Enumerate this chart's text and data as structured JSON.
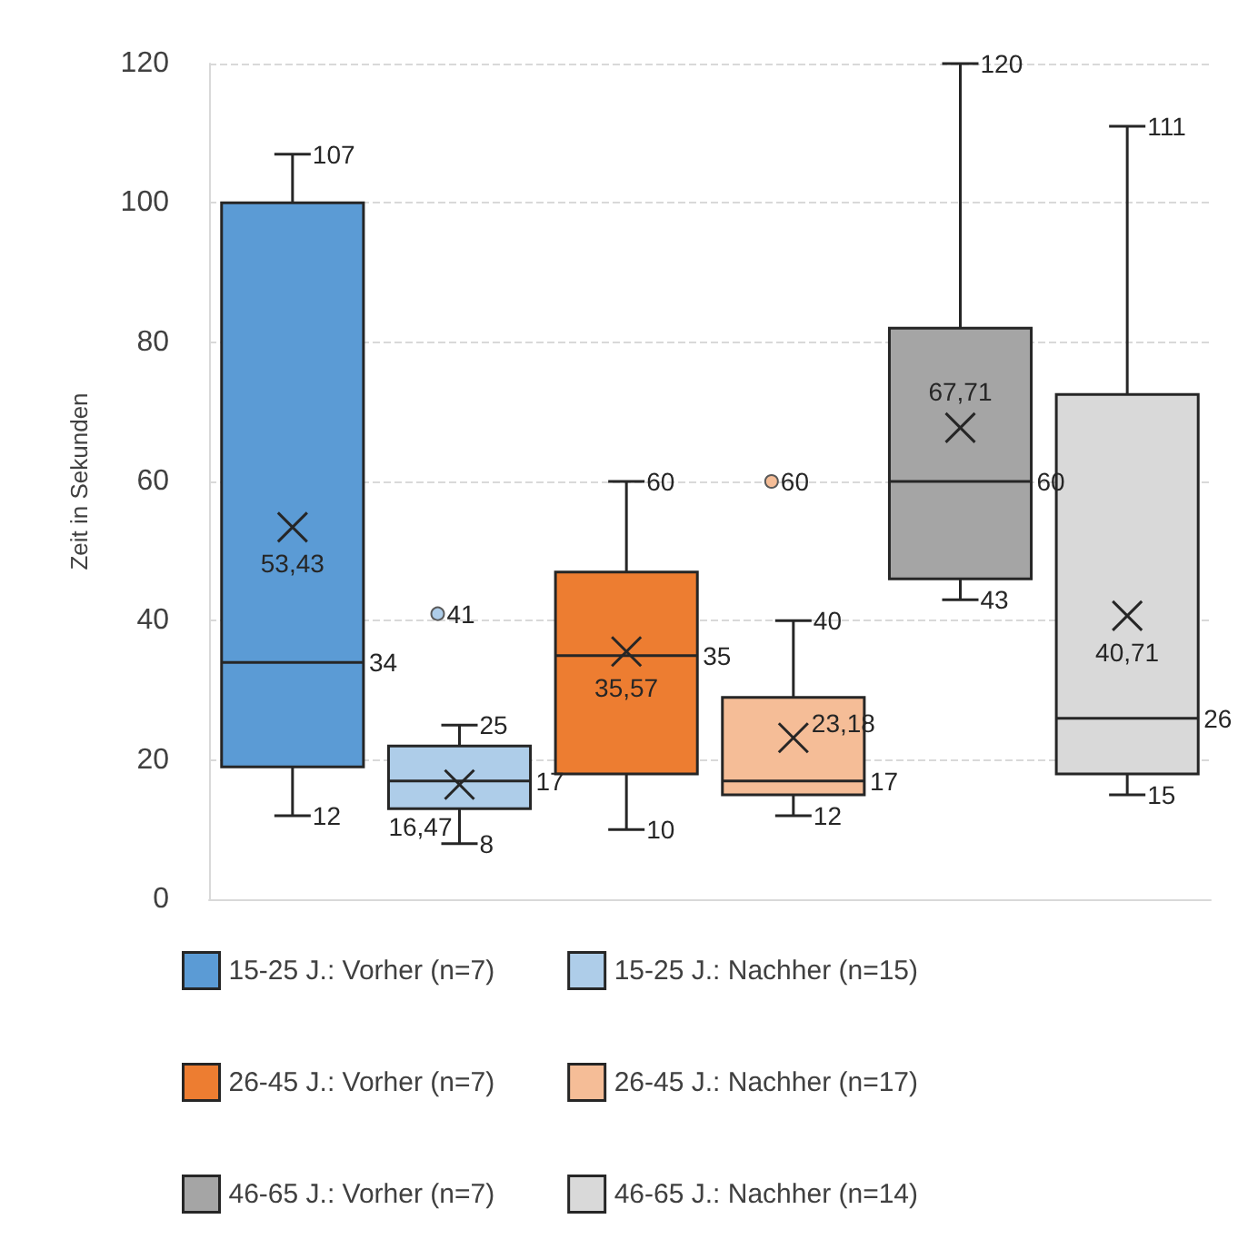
{
  "chart_data": {
    "type": "box",
    "ylabel": "Zeit in Sekunden",
    "categories": [
      null
    ],
    "ylim": [
      0,
      120
    ],
    "yticks": [
      0,
      20,
      40,
      60,
      80,
      100,
      120
    ],
    "grid": "y",
    "legend": "bottom",
    "series": [
      {
        "name": "15-25 J.: Vorher (n=7)",
        "color": "#5b9bd5",
        "boxes": [
          {
            "low": 12,
            "q1": 19,
            "median": 34,
            "q3": 100,
            "high": 107,
            "mean": 53.43
          }
        ]
      },
      {
        "name": "15-25 J.: Nachher (n=15)",
        "color": "#aecde9",
        "boxes": [
          {
            "low": 8,
            "q1": 13,
            "median": 17,
            "q3": 22,
            "high": 25,
            "mean": 16.47,
            "outliers": [
              41
            ]
          }
        ]
      },
      {
        "name": "26-45 J.: Vorher (n=7)",
        "color": "#ed7d31",
        "boxes": [
          {
            "low": 10,
            "q1": 18,
            "median": 35,
            "q3": 47,
            "high": 60,
            "mean": 35.57
          }
        ]
      },
      {
        "name": "26-45 J.: Nachher (n=17)",
        "color": "#f5bd97",
        "boxes": [
          {
            "low": 12,
            "q1": 15,
            "median": 17,
            "q3": 29,
            "high": 40,
            "mean": 23.18,
            "outliers": [
              60
            ]
          }
        ]
      },
      {
        "name": "46-65 J.: Vorher (n=7)",
        "color": "#a5a5a5",
        "boxes": [
          {
            "low": 43,
            "q1": 46,
            "median": 60,
            "q3": 82,
            "high": 120,
            "mean": 67.71
          }
        ]
      },
      {
        "name": "46-65 J.: Nachher (n=14)",
        "color": "#d9d9d9",
        "boxes": [
          {
            "low": 15,
            "q1": 18,
            "median": 26,
            "q3": 72.5,
            "high": 111,
            "mean": 40.71
          }
        ]
      }
    ],
    "annotations": [
      "12",
      "34",
      "107",
      "53,43",
      "8",
      "17",
      "25",
      "16,47",
      "41",
      "10",
      "35",
      "60",
      "35,57",
      "12",
      "17",
      "40",
      "23,18",
      "60",
      "43",
      "60",
      "120",
      "67,71",
      "15",
      "26",
      "111",
      "40,71"
    ]
  }
}
